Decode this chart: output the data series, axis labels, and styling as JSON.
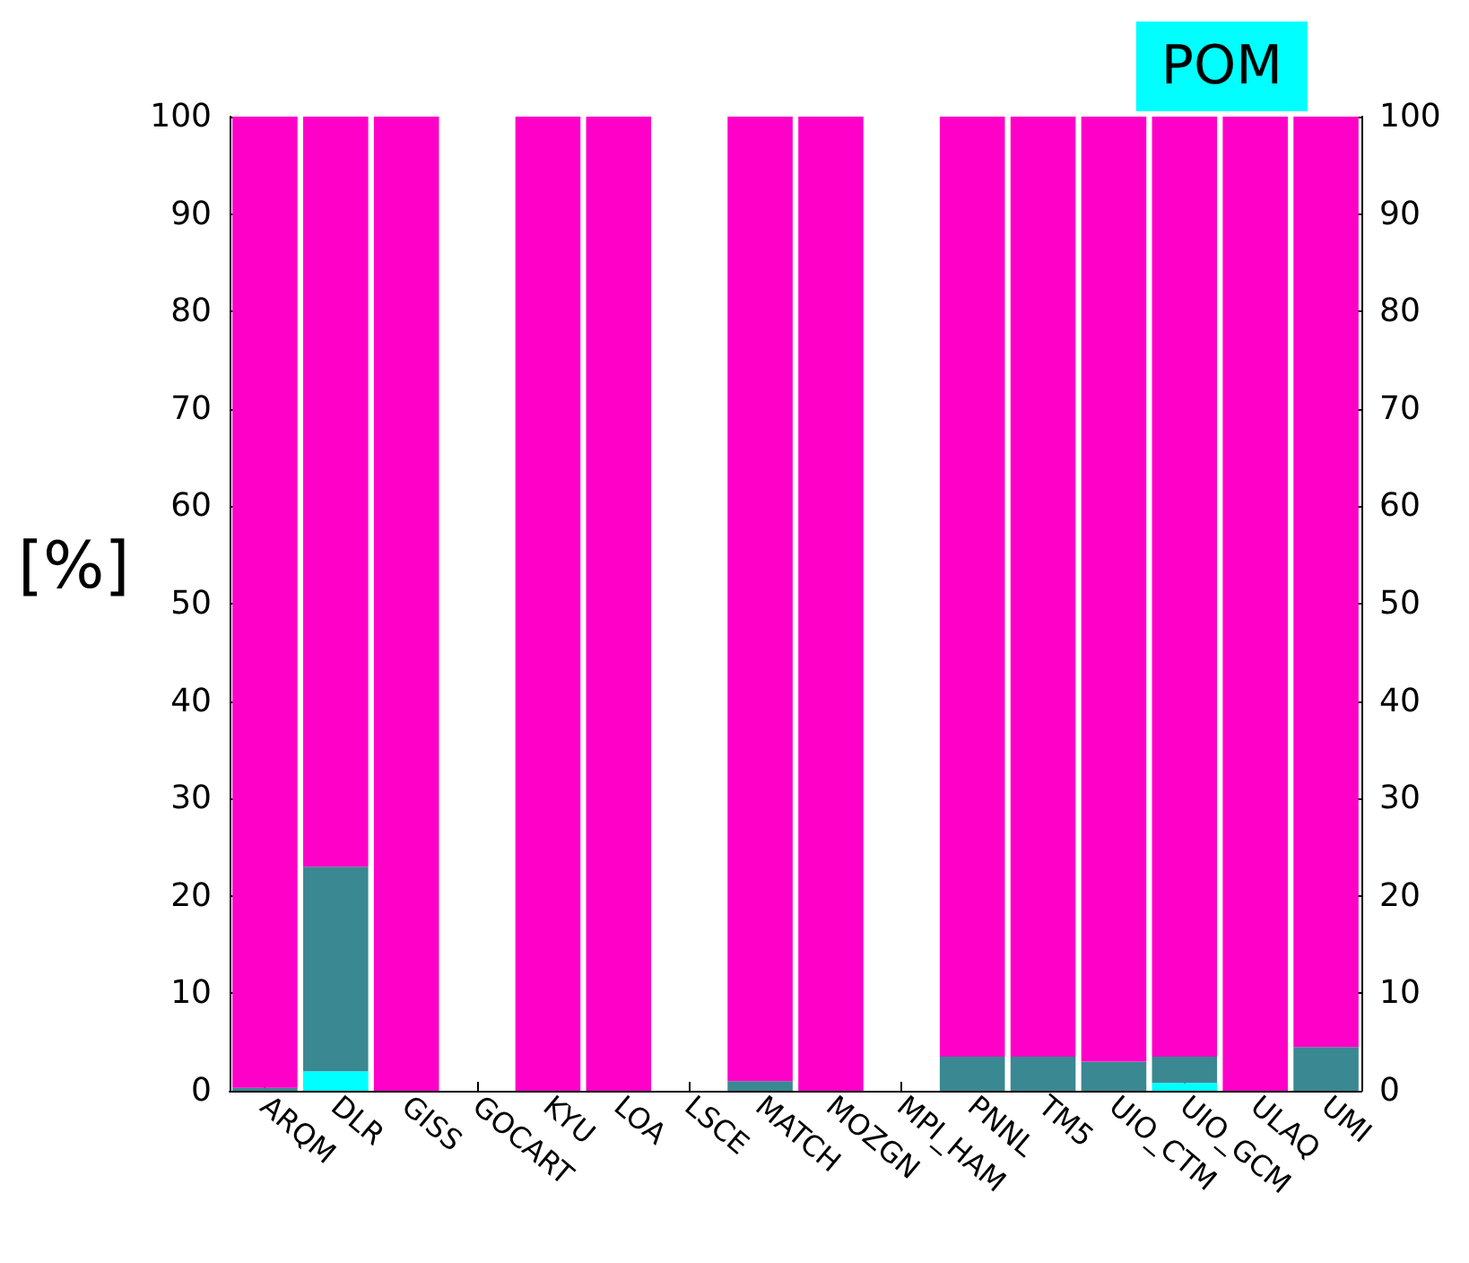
{
  "chart_data": {
    "type": "bar",
    "title": "POM",
    "ylabel": "[%]",
    "stacked": true,
    "categories": [
      "ARQM",
      "DLR",
      "GISS",
      "GOCART",
      "KYU",
      "LOA",
      "LSCE",
      "MATCH",
      "MOZGN",
      "MPI_HAM",
      "PNNL",
      "TM5",
      "UIO_CTM",
      "UIO_GCM",
      "ULAQ",
      "UMI"
    ],
    "series": [
      {
        "color": "#00ffff",
        "values": [
          0,
          2,
          0,
          null,
          0,
          0,
          null,
          0,
          0,
          null,
          0,
          0,
          0,
          0.8,
          0,
          0
        ]
      },
      {
        "color": "#3a8891",
        "values": [
          0.3,
          21,
          0,
          null,
          0,
          0,
          null,
          1,
          0,
          null,
          3.5,
          3.5,
          3,
          2.7,
          0,
          4.5
        ]
      },
      {
        "color": "#ff00c8",
        "values": [
          99.7,
          77,
          100,
          null,
          100,
          100,
          null,
          99,
          100,
          null,
          96.5,
          96.5,
          97,
          96.5,
          100,
          95.5
        ]
      }
    ],
    "ylim": [
      0,
      100
    ],
    "yticks": [
      0,
      10,
      20,
      30,
      40,
      50,
      60,
      70,
      80,
      90,
      100
    ],
    "y2lim": [
      0,
      100
    ],
    "y2ticks": [
      0,
      10,
      20,
      30,
      40,
      50,
      60,
      70,
      80,
      90,
      100
    ],
    "grid": false
  }
}
